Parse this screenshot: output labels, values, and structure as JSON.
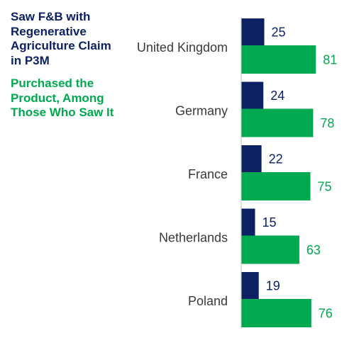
{
  "chart_data": {
    "type": "bar",
    "orientation": "horizontal",
    "categories": [
      "United Kingdom",
      "Germany",
      "France",
      "Netherlands",
      "Poland"
    ],
    "series": [
      {
        "name": "Saw F&B with Regenerative Agriculture Claim in P3M",
        "color": "#0d2063",
        "values": [
          25,
          24,
          22,
          15,
          19
        ]
      },
      {
        "name": "Purchased the Product, Among Those Who Saw It",
        "color": "#00a94f",
        "values": [
          81,
          78,
          75,
          63,
          76
        ]
      }
    ],
    "axis_line": true,
    "grid": false,
    "legend_position": "top-left"
  }
}
